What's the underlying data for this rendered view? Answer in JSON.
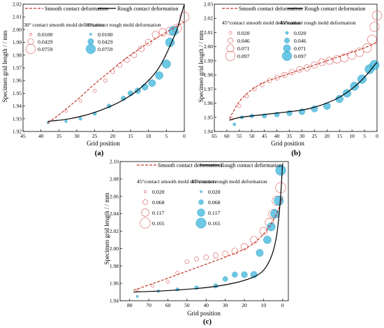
{
  "figure": {
    "panels": [
      {
        "id": "a",
        "panel_label": "(a)",
        "xlabel": "Grid position",
        "ylabel": "Specimen grid length / / mm",
        "xticks": [
          "45",
          "40",
          "35",
          "30",
          "25",
          "20",
          "15",
          "10",
          "5",
          "0"
        ],
        "yticks": [
          "1.92",
          "1.93",
          "1.94",
          "1.95",
          "1.96",
          "1.97",
          "1.98",
          "1.99",
          "2.00",
          "2.01",
          "2.02"
        ],
        "legend_lines": [
          "Smooth contact deformation",
          "Rough contact deformation"
        ],
        "legend_smooth_title": "30° contact smooth mold deformation",
        "legend_rough_title": "30°contact rough mold deformation",
        "legend_values": [
          "0.0100",
          "0.0429",
          "0.0759"
        ]
      },
      {
        "id": "b",
        "panel_label": "(b)",
        "xlabel": "Grid position",
        "ylabel": "Specimen grid length / / mm",
        "xticks": [
          "65",
          "60",
          "55",
          "50",
          "45",
          "40",
          "35",
          "30",
          "25",
          "20",
          "15",
          "10",
          "5",
          "0"
        ],
        "yticks": [
          "1.94",
          "1.95",
          "1.96",
          "1.97",
          "1.98",
          "1.99",
          "2.00",
          "2.01",
          "2.02",
          "2.03"
        ],
        "legend_lines": [
          "Smooth contact deformation",
          "Rough contact deformation"
        ],
        "legend_smooth_title": "45°contact smooth mold deformation",
        "legend_rough_title": "45°contact rough mold deformation",
        "legend_values": [
          "0.020",
          "0.046",
          "0.071",
          "0.097"
        ]
      },
      {
        "id": "c",
        "panel_label": "(c)",
        "xlabel": "Grid position",
        "ylabel": "Specimen grid length / / mm",
        "xticks": [
          "80",
          "70",
          "60",
          "50",
          "40",
          "30",
          "20",
          "10",
          "0"
        ],
        "yticks": [
          "1.94",
          "1.96",
          "1.98",
          "2.00",
          "2.02",
          "2.04",
          "2.06",
          "2.08",
          "2.10"
        ],
        "legend_lines": [
          "Smooth contact deformation",
          "Rough contact deformation"
        ],
        "legend_smooth_title": "45°contact smooth mold deformation",
        "legend_rough_title": "45°contact rough mold deformation",
        "legend_values": [
          "0.020",
          "0.068",
          "0.117",
          "0.165"
        ]
      }
    ]
  },
  "colors": {
    "smooth_curve": "#c0392b",
    "rough_curve": "#000000",
    "smooth_marker": "#e07070",
    "rough_marker": "#3bb6dc"
  },
  "chart_data": [
    {
      "type": "scatter",
      "panel": "a",
      "xlim": [
        45,
        0
      ],
      "ylim": [
        1.92,
        2.02
      ],
      "grid": false,
      "series": [
        {
          "name": "Smooth contact deformation",
          "kind": "line",
          "x": [
            38,
            35,
            32,
            29,
            26,
            23,
            20,
            17,
            14,
            11,
            8,
            5,
            2,
            0
          ],
          "y": [
            1.927,
            1.933,
            1.94,
            1.947,
            1.955,
            1.962,
            1.969,
            1.976,
            1.982,
            1.988,
            1.993,
            1.998,
            2.003,
            2.006
          ]
        },
        {
          "name": "Rough contact deformation",
          "kind": "line",
          "x": [
            38,
            34,
            30,
            26,
            22,
            18,
            14,
            11,
            8,
            6,
            4,
            2,
            1,
            0
          ],
          "y": [
            1.928,
            1.929,
            1.931,
            1.934,
            1.938,
            1.943,
            1.95,
            1.957,
            1.966,
            1.975,
            1.987,
            2.0,
            2.01,
            2.02
          ]
        },
        {
          "name": "30° contact smooth mold deformation",
          "kind": "marker",
          "x": [
            38,
            33,
            29,
            25,
            22,
            20,
            18,
            16,
            14,
            12,
            10,
            8,
            6,
            4,
            2,
            0
          ],
          "y": [
            1.927,
            1.936,
            1.944,
            1.952,
            1.96,
            1.967,
            1.972,
            1.976,
            1.98,
            1.985,
            1.99,
            1.996,
            1.998,
            1.999,
            2.001,
            2.01
          ],
          "size": [
            0.01,
            0.013,
            0.016,
            0.019,
            0.022,
            0.026,
            0.03,
            0.034,
            0.038,
            0.043,
            0.048,
            0.053,
            0.058,
            0.063,
            0.068,
            0.0759
          ]
        },
        {
          "name": "30°contact rough mold deformation",
          "kind": "marker",
          "x": [
            38,
            33,
            29,
            25,
            21,
            17,
            15,
            13,
            11,
            9,
            7,
            5,
            4,
            3
          ],
          "y": [
            1.927,
            1.928,
            1.93,
            1.934,
            1.94,
            1.946,
            1.95,
            1.952,
            1.955,
            1.958,
            1.964,
            1.973,
            1.99,
            1.999
          ],
          "size": [
            0.01,
            0.014,
            0.018,
            0.022,
            0.027,
            0.032,
            0.037,
            0.042,
            0.048,
            0.054,
            0.06,
            0.066,
            0.071,
            0.0759
          ]
        }
      ]
    },
    {
      "type": "scatter",
      "panel": "b",
      "xlim": [
        65,
        0
      ],
      "ylim": [
        1.94,
        2.03
      ],
      "grid": false,
      "series": [
        {
          "name": "Smooth contact deformation",
          "kind": "line",
          "x": [
            59,
            55,
            50,
            45,
            40,
            35,
            30,
            25,
            20,
            15,
            10,
            5,
            0
          ],
          "y": [
            1.949,
            1.962,
            1.97,
            1.975,
            1.978,
            1.981,
            1.984,
            1.987,
            1.99,
            1.993,
            1.996,
            1.999,
            2.003
          ]
        },
        {
          "name": "Rough contact deformation",
          "kind": "line",
          "x": [
            59,
            55,
            50,
            45,
            40,
            35,
            30,
            25,
            20,
            15,
            10,
            5,
            0
          ],
          "y": [
            1.948,
            1.95,
            1.951,
            1.952,
            1.953,
            1.954,
            1.955,
            1.957,
            1.96,
            1.964,
            1.97,
            1.978,
            1.989
          ]
        },
        {
          "name": "45°contact smooth mold deformation",
          "kind": "marker",
          "x": [
            58,
            55,
            52,
            49,
            46,
            43,
            40,
            37,
            34,
            31,
            28,
            25,
            22,
            19,
            16,
            13,
            10,
            7,
            4,
            2,
            1,
            0
          ],
          "y": [
            1.949,
            1.958,
            1.965,
            1.97,
            1.973,
            1.976,
            1.978,
            1.98,
            1.982,
            1.984,
            1.985,
            1.987,
            1.989,
            1.99,
            1.991,
            1.992,
            1.994,
            1.996,
            1.999,
            2.005,
            2.014,
            2.022
          ],
          "size": [
            0.02,
            0.024,
            0.028,
            0.032,
            0.036,
            0.04,
            0.044,
            0.048,
            0.052,
            0.056,
            0.06,
            0.064,
            0.068,
            0.071,
            0.075,
            0.079,
            0.083,
            0.086,
            0.089,
            0.092,
            0.095,
            0.097
          ]
        },
        {
          "name": "45°contact rough mold deformation",
          "kind": "marker",
          "x": [
            57,
            54,
            50,
            45,
            40,
            35,
            30,
            25,
            20,
            15,
            12,
            9,
            6,
            3,
            1
          ],
          "y": [
            1.945,
            1.95,
            1.951,
            1.951,
            1.952,
            1.953,
            1.954,
            1.956,
            1.958,
            1.963,
            1.967,
            1.972,
            1.977,
            1.984,
            1.987
          ],
          "size": [
            0.02,
            0.026,
            0.032,
            0.038,
            0.044,
            0.05,
            0.056,
            0.062,
            0.068,
            0.074,
            0.079,
            0.084,
            0.089,
            0.094,
            0.097
          ]
        }
      ]
    },
    {
      "type": "scatter",
      "panel": "c",
      "xlim": [
        85,
        -3
      ],
      "ylim": [
        1.94,
        2.1
      ],
      "grid": false,
      "series": [
        {
          "name": "Smooth contact deformation",
          "kind": "line",
          "x": [
            78,
            70,
            60,
            50,
            40,
            30,
            20,
            15,
            10,
            6,
            3,
            1,
            0
          ],
          "y": [
            1.952,
            1.958,
            1.966,
            1.974,
            1.982,
            1.99,
            1.999,
            2.006,
            2.016,
            2.028,
            2.04,
            2.052,
            2.06
          ]
        },
        {
          "name": "Rough contact deformation",
          "kind": "line",
          "x": [
            78,
            65,
            50,
            40,
            30,
            20,
            12,
            8,
            5,
            3,
            2,
            1,
            0
          ],
          "y": [
            1.95,
            1.951,
            1.953,
            1.955,
            1.958,
            1.963,
            1.97,
            1.98,
            1.995,
            2.015,
            2.035,
            2.06,
            2.098
          ]
        },
        {
          "name": "45°contact smooth mold deformation",
          "kind": "marker",
          "x": [
            76,
            68,
            60,
            55,
            50,
            45,
            40,
            35,
            30,
            25,
            20,
            15,
            10,
            7,
            5,
            3,
            1
          ],
          "y": [
            1.952,
            1.957,
            1.962,
            1.972,
            1.985,
            1.988,
            1.99,
            1.992,
            1.994,
            1.997,
            2.002,
            2.01,
            2.02,
            2.03,
            2.04,
            2.055,
            2.07
          ],
          "size": [
            0.02,
            0.028,
            0.036,
            0.044,
            0.052,
            0.06,
            0.068,
            0.076,
            0.084,
            0.092,
            0.1,
            0.11,
            0.12,
            0.13,
            0.14,
            0.152,
            0.165
          ]
        },
        {
          "name": "45°contact rough mold deformation",
          "kind": "marker",
          "x": [
            76,
            65,
            55,
            45,
            35,
            30,
            25,
            20,
            15,
            12,
            8,
            6,
            4,
            2,
            1
          ],
          "y": [
            1.945,
            1.951,
            1.953,
            1.955,
            1.957,
            1.965,
            1.97,
            1.97,
            1.97,
            1.995,
            2.01,
            2.025,
            2.04,
            2.055,
            2.09
          ],
          "size": [
            0.02,
            0.03,
            0.04,
            0.05,
            0.06,
            0.07,
            0.08,
            0.09,
            0.1,
            0.11,
            0.12,
            0.13,
            0.14,
            0.152,
            0.165
          ]
        }
      ]
    }
  ]
}
